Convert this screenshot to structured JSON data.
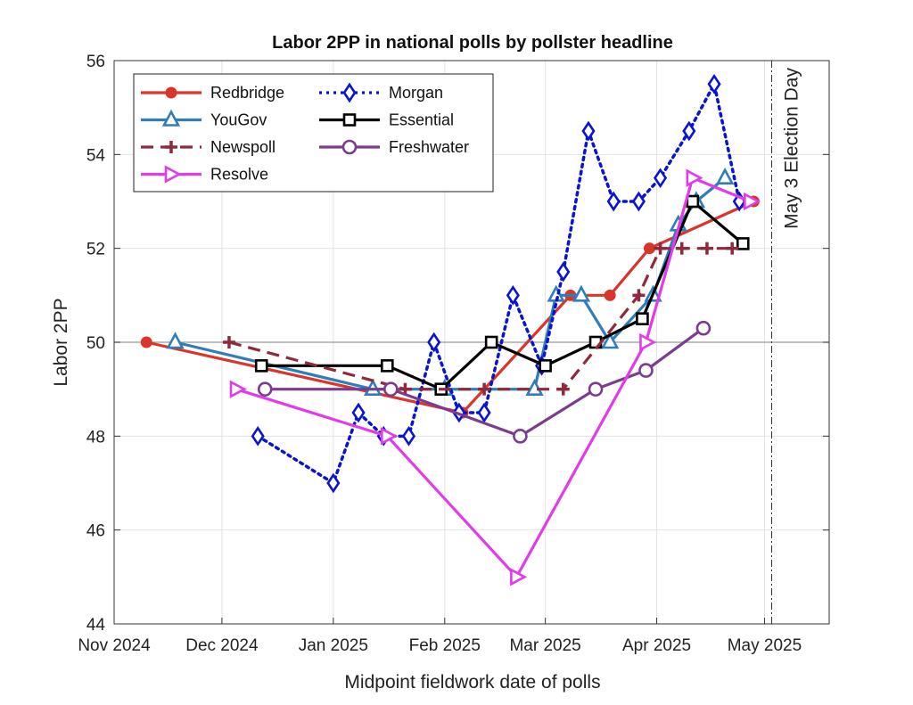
{
  "chart_data": {
    "type": "line",
    "title": "Labor 2PP in national polls by pollster headline",
    "xlabel": "Midpoint fieldwork date of polls",
    "ylabel": "Labor 2PP",
    "xlim": [
      "2024-11-01",
      "2025-05-19"
    ],
    "ylim": [
      44,
      56
    ],
    "grid": true,
    "legend_position": "top-left",
    "x_ticks": [
      {
        "date": "2024-11-01",
        "label": "Nov 2024"
      },
      {
        "date": "2024-12-01",
        "label": "Dec 2024"
      },
      {
        "date": "2025-01-01",
        "label": "Jan 2025"
      },
      {
        "date": "2025-02-01",
        "label": "Feb 2025"
      },
      {
        "date": "2025-03-01",
        "label": "Mar 2025"
      },
      {
        "date": "2025-04-01",
        "label": "Apr 2025"
      },
      {
        "date": "2025-05-01",
        "label": "May 2025"
      }
    ],
    "y_ticks": [
      44,
      46,
      48,
      50,
      52,
      54,
      56
    ],
    "annotation": {
      "date": "2025-05-03",
      "label": "May 3 Election Day"
    },
    "series": [
      {
        "name": "Redbridge",
        "color": "#d9352a",
        "style": "solid",
        "marker": "filled-circle",
        "x": [
          "2024-11-10",
          "2025-02-06",
          "2025-03-08",
          "2025-03-19",
          "2025-03-30",
          "2025-04-28"
        ],
        "y": [
          50,
          48.5,
          51,
          51,
          52,
          53
        ]
      },
      {
        "name": "YouGov",
        "color": "#2f7dba",
        "style": "solid",
        "marker": "triangle-up",
        "x": [
          "2024-11-18",
          "2025-01-12",
          "2025-02-01",
          "2025-02-26",
          "2025-03-04",
          "2025-03-11",
          "2025-03-19",
          "2025-03-31",
          "2025-04-07",
          "2025-04-12",
          "2025-04-20"
        ],
        "y": [
          50,
          49,
          49,
          49,
          51,
          51,
          50,
          51,
          52.5,
          53,
          53.5
        ]
      },
      {
        "name": "Morgan",
        "color": "#0a14d0",
        "style": "dotted",
        "marker": "diamond",
        "x": [
          "2024-12-11",
          "2025-01-01",
          "2025-01-08",
          "2025-01-15",
          "2025-01-22",
          "2025-01-29",
          "2025-02-05",
          "2025-02-12",
          "2025-02-20",
          "2025-02-28",
          "2025-03-06",
          "2025-03-13",
          "2025-03-20",
          "2025-03-27",
          "2025-04-02",
          "2025-04-10",
          "2025-04-17",
          "2025-04-24"
        ],
        "y": [
          48,
          47,
          48.5,
          48,
          48,
          50,
          48.5,
          48.5,
          51,
          49.5,
          51.5,
          54.5,
          53,
          53,
          53.5,
          54.5,
          55.5,
          53
        ]
      },
      {
        "name": "Essential",
        "color": "#000000",
        "style": "solid",
        "marker": "square",
        "x": [
          "2024-12-12",
          "2025-01-16",
          "2025-01-31",
          "2025-02-14",
          "2025-03-01",
          "2025-03-15",
          "2025-03-28",
          "2025-04-11",
          "2025-04-25"
        ],
        "y": [
          49.5,
          49.5,
          49,
          50,
          49.5,
          50,
          50.5,
          53,
          52.1
        ]
      },
      {
        "name": "Newspoll",
        "color": "#8e2a3c",
        "style": "dashed",
        "marker": "plus",
        "x": [
          "2024-12-03",
          "2025-01-21",
          "2025-02-12",
          "2025-03-06",
          "2025-03-27",
          "2025-04-02",
          "2025-04-08",
          "2025-04-15",
          "2025-04-22"
        ],
        "y": [
          50,
          49,
          49,
          49,
          51,
          52,
          52,
          52,
          52
        ]
      },
      {
        "name": "Freshwater",
        "color": "#7b3c90",
        "style": "solid",
        "marker": "open-circle",
        "x": [
          "2024-12-13",
          "2025-01-17",
          "2025-02-22",
          "2025-03-15",
          "2025-03-29",
          "2025-04-14"
        ],
        "y": [
          49,
          49,
          48,
          49,
          49.4,
          50.3
        ]
      },
      {
        "name": "Resolve",
        "color": "#e23ce8",
        "style": "solid",
        "marker": "triangle-right",
        "x": [
          "2024-12-05",
          "2025-01-16",
          "2025-02-21",
          "2025-03-29",
          "2025-04-11",
          "2025-04-27"
        ],
        "y": [
          49,
          48,
          45,
          50,
          53.5,
          53
        ]
      }
    ],
    "legend_order": [
      "Redbridge",
      "Morgan",
      "YouGov",
      "Essential",
      "Newspoll",
      "Freshwater",
      "Resolve"
    ]
  }
}
